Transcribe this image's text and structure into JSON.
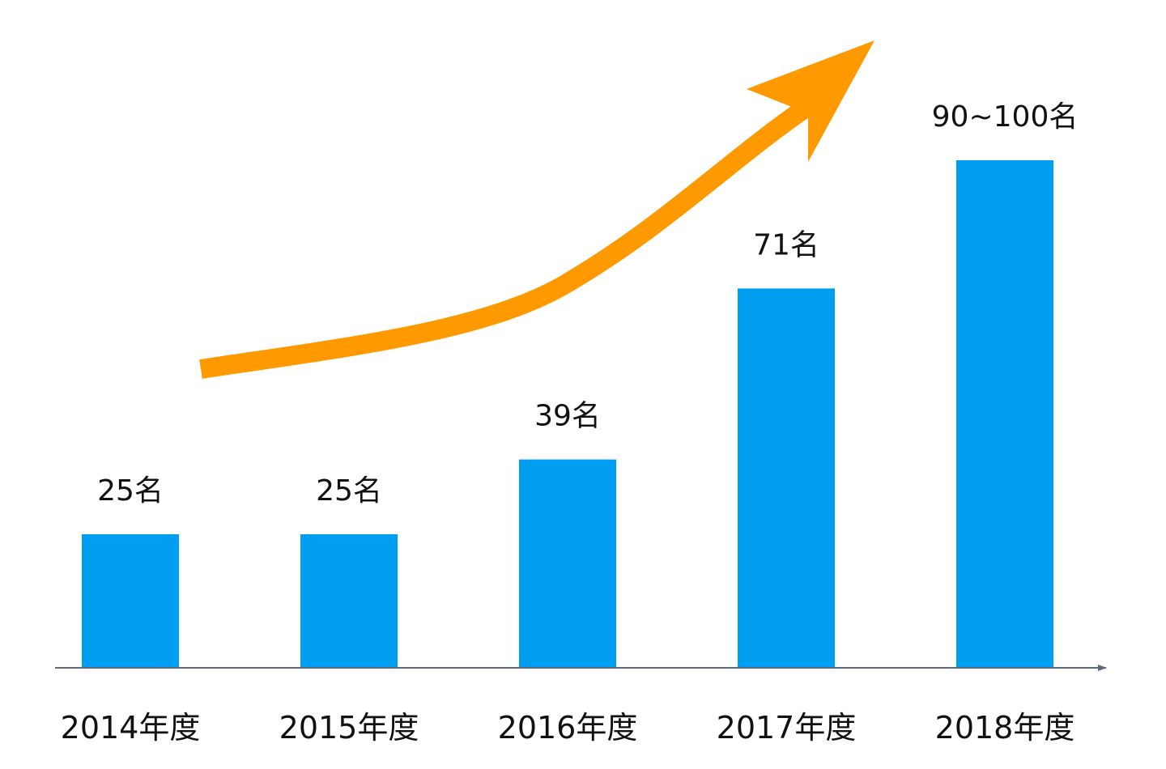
{
  "chart_data": {
    "type": "bar",
    "categories": [
      "2014年度",
      "2015年度",
      "2016年度",
      "2017年度",
      "2018年度"
    ],
    "values": [
      25,
      25,
      39,
      71,
      95
    ],
    "data_labels": [
      "25名",
      "25名",
      "39名",
      "71名",
      "90~100名"
    ],
    "ylim": [
      0,
      100
    ],
    "grid": false,
    "legend": "none",
    "colors": {
      "bar": "#009ef0",
      "trend_arrow": "#ff9900",
      "axis": "#5a6a80"
    },
    "annotations": [
      {
        "type": "trend-arrow",
        "direction": "upward"
      }
    ]
  }
}
